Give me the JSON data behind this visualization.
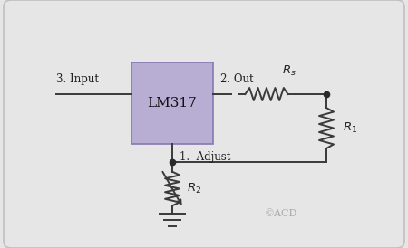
{
  "bg_color": "#e6e6e6",
  "box_color": "#b8aed4",
  "box_border_color": "#8878b0",
  "lm317_label": "LM317",
  "input_label": "3. Input",
  "out_label": "2. Out",
  "adjust_label": "1.  Adjust",
  "rs_label": "$R_s$",
  "r1_label": "$R_1$",
  "r2_label": "$R_2$",
  "copyright": "©ACD",
  "line_color": "#3a3a3a",
  "dot_color": "#2a2a2a",
  "border_color": "#c0c0c0",
  "label_color": "#222222",
  "copyright_color": "#aaaaaa",
  "figw": 4.5,
  "figh": 2.74,
  "dpi": 100
}
